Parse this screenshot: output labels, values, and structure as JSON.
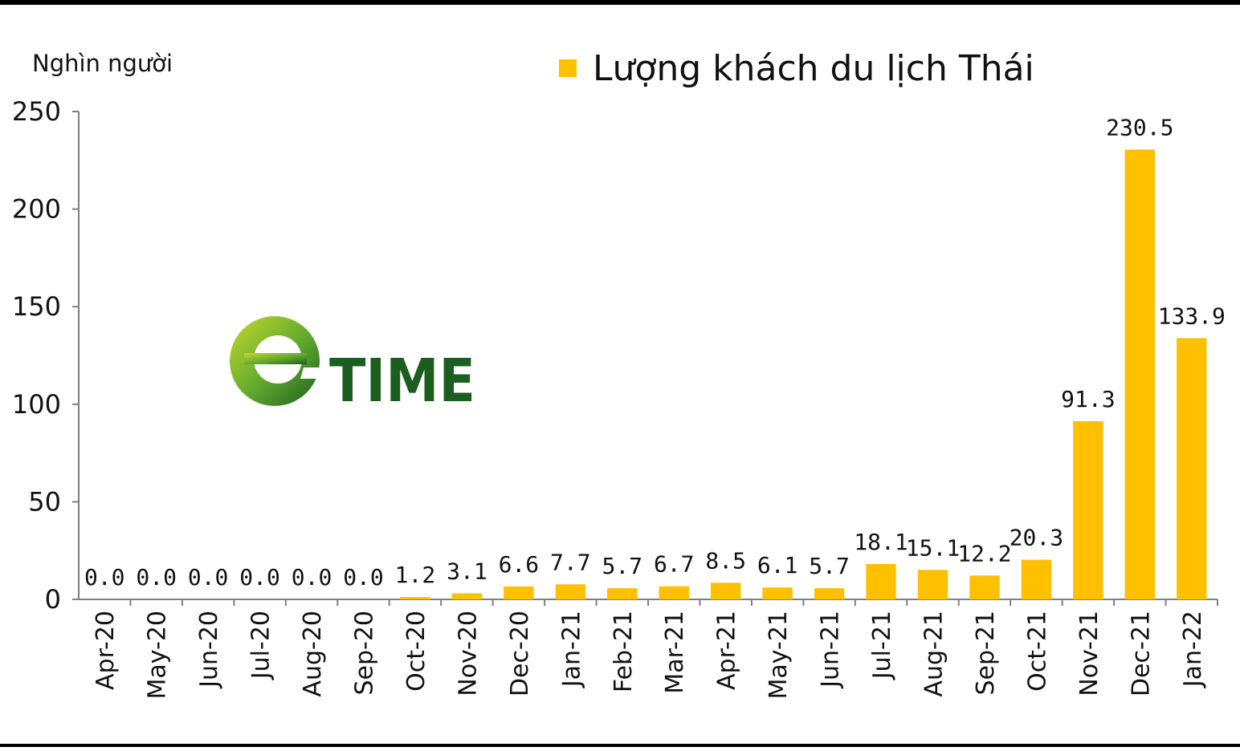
{
  "chart_data": {
    "type": "bar",
    "ylabel": "Nghìn người",
    "ylim": [
      0,
      250
    ],
    "yticks": [
      0,
      50,
      100,
      150,
      200,
      250
    ],
    "grid": false,
    "legend_position": "top-right",
    "series": [
      {
        "name": "Lượng khách du lịch Thái",
        "color": "#FFC000",
        "values": [
          0.0,
          0.0,
          0.0,
          0.0,
          0.0,
          0.0,
          1.2,
          3.1,
          6.6,
          7.7,
          5.7,
          6.7,
          8.5,
          6.1,
          5.7,
          18.1,
          15.1,
          12.2,
          20.3,
          91.3,
          230.5,
          133.9
        ],
        "labels": [
          "0.0",
          "0.0",
          "0.0",
          "0.0",
          "0.0",
          "0.0",
          "1.2",
          "3.1",
          "6.6",
          "7.7",
          "5.7",
          "6.7",
          "8.5",
          "6.1",
          "5.7",
          "18.1",
          "15.1",
          "12.2",
          "20.3",
          "91.3",
          "230.5",
          "133.9"
        ]
      }
    ],
    "categories": [
      "Apr-20",
      "May-20",
      "Jun-20",
      "Jul-20",
      "Aug-20",
      "Sep-20",
      "Oct-20",
      "Nov-20",
      "Dec-20",
      "Jan-21",
      "Feb-21",
      "Mar-21",
      "Apr-21",
      "May-21",
      "Jun-21",
      "Jul-21",
      "Aug-21",
      "Sep-21",
      "Oct-21",
      "Nov-21",
      "Dec-21",
      "Jan-22"
    ]
  },
  "logo": {
    "text": "TIME",
    "colors": {
      "green": "#1B5E20",
      "lime": "#8BC34A",
      "bright": "#C6DA2E"
    }
  }
}
